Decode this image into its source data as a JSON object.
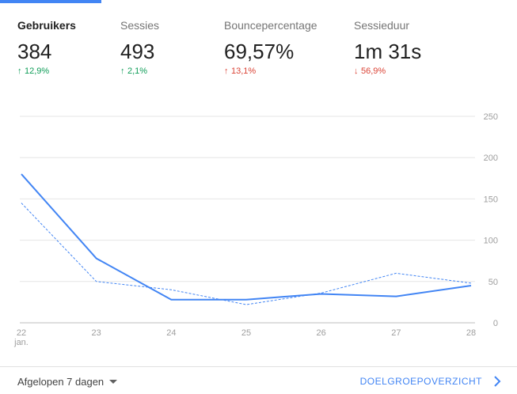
{
  "metrics": [
    {
      "label": "Gebruikers",
      "value": "384",
      "change": "12,9%",
      "direction": "up",
      "color": "#0f9d58",
      "active": true
    },
    {
      "label": "Sessies",
      "value": "493",
      "change": "2,1%",
      "direction": "up",
      "color": "#0f9d58",
      "active": false
    },
    {
      "label": "Bouncepercentage",
      "value": "69,57%",
      "change": "13,1%",
      "direction": "up",
      "color": "#db4437",
      "active": false
    },
    {
      "label": "Sessieduur",
      "value": "1m 31s",
      "change": "56,9%",
      "direction": "down",
      "color": "#db4437",
      "active": false
    }
  ],
  "footer": {
    "period_label": "Afgelopen 7 dagen",
    "overview_label": "DOELGROEPOVERZICHT"
  },
  "chart_data": {
    "type": "line",
    "categories": [
      "22",
      "23",
      "24",
      "25",
      "26",
      "27",
      "28"
    ],
    "category_sublabels": [
      "jan.",
      "",
      "",
      "",
      "",
      "",
      ""
    ],
    "yticks": [
      250,
      200,
      150,
      100,
      50,
      0
    ],
    "ylim": [
      0,
      250
    ],
    "axis_position": "right",
    "series": [
      {
        "values": [
          180,
          78,
          28,
          28,
          35,
          32,
          45
        ],
        "color": "#4285f4",
        "style": "solid"
      },
      {
        "values": [
          145,
          50,
          40,
          22,
          36,
          60,
          48
        ],
        "color": "#4285f4",
        "style": "dashed"
      }
    ]
  },
  "colors": {
    "accent": "#4285f4",
    "positive": "#0f9d58",
    "negative": "#db4437"
  }
}
